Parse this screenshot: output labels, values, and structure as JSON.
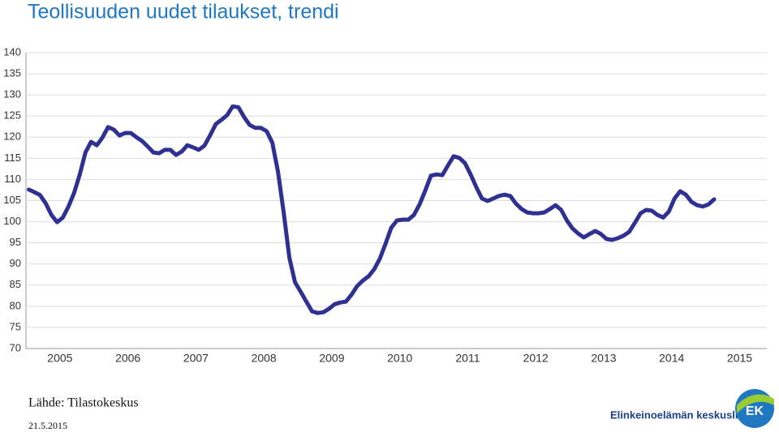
{
  "chart_data": {
    "type": "line",
    "title": "Teollisuuden uudet tilaukset, trendi",
    "x": [
      2005.042,
      2005.125,
      2005.208,
      2005.292,
      2005.375,
      2005.458,
      2005.542,
      2005.625,
      2005.708,
      2005.792,
      2005.875,
      2005.958,
      2006.042,
      2006.125,
      2006.208,
      2006.292,
      2006.375,
      2006.458,
      2006.542,
      2006.625,
      2006.708,
      2006.792,
      2006.875,
      2006.958,
      2007.042,
      2007.125,
      2007.208,
      2007.292,
      2007.375,
      2007.458,
      2007.542,
      2007.625,
      2007.708,
      2007.792,
      2007.875,
      2007.958,
      2008.042,
      2008.125,
      2008.208,
      2008.292,
      2008.375,
      2008.458,
      2008.542,
      2008.625,
      2008.708,
      2008.792,
      2008.875,
      2008.958,
      2009.042,
      2009.125,
      2009.208,
      2009.292,
      2009.375,
      2009.458,
      2009.542,
      2009.625,
      2009.708,
      2009.792,
      2009.875,
      2009.958,
      2010.042,
      2010.125,
      2010.208,
      2010.292,
      2010.375,
      2010.458,
      2010.542,
      2010.625,
      2010.708,
      2010.792,
      2010.875,
      2010.958,
      2011.042,
      2011.125,
      2011.208,
      2011.292,
      2011.375,
      2011.458,
      2011.542,
      2011.625,
      2011.708,
      2011.792,
      2011.875,
      2011.958,
      2012.042,
      2012.125,
      2012.208,
      2012.292,
      2012.375,
      2012.458,
      2012.542,
      2012.625,
      2012.708,
      2012.792,
      2012.875,
      2012.958,
      2013.042,
      2013.125,
      2013.208,
      2013.292,
      2013.375,
      2013.458,
      2013.542,
      2013.625,
      2013.708,
      2013.792,
      2013.875,
      2013.958,
      2014.042,
      2014.125,
      2014.208,
      2014.292,
      2014.375,
      2014.458,
      2014.542,
      2014.625,
      2014.708,
      2014.792,
      2014.875,
      2014.958,
      2015.042,
      2015.125
    ],
    "values": [
      107.6,
      107,
      106.3,
      104.3,
      101.6,
      99.9,
      101,
      103.6,
      106.8,
      111.2,
      116.4,
      118.9,
      118.1,
      119.9,
      122.4,
      121.8,
      120.4,
      121,
      121,
      120,
      119.1,
      117.8,
      116.4,
      116.2,
      117,
      117,
      115.8,
      116.6,
      118.1,
      117.6,
      117,
      118,
      120.4,
      123.1,
      124.1,
      125.2,
      127.3,
      127.1,
      124.8,
      122.9,
      122.2,
      122.2,
      121.4,
      118.7,
      111.8,
      102.2,
      91.5,
      85.7,
      83.4,
      81.1,
      78.8,
      78.4,
      78.6,
      79.4,
      80.5,
      80.9,
      81.1,
      82.8,
      84.8,
      86.1,
      87.1,
      88.8,
      91.3,
      94.9,
      98.6,
      100.3,
      100.5,
      100.5,
      101.6,
      104.1,
      107.4,
      110.9,
      111.2,
      111,
      113.3,
      115.5,
      115.1,
      113.9,
      111.2,
      108.2,
      105.5,
      104.9,
      105.5,
      106.1,
      106.4,
      106.1,
      104.3,
      103,
      102.2,
      102,
      102,
      102.2,
      103,
      103.9,
      102.8,
      100.3,
      98.4,
      97.2,
      96.3,
      97.1,
      97.8,
      97.1,
      95.9,
      95.7,
      96.1,
      96.7,
      97.6,
      99.7,
      102,
      102.8,
      102.6,
      101.6,
      101,
      102.4,
      105.5,
      107.2,
      106.4,
      104.7,
      103.9,
      103.6,
      104.1,
      105.3
    ],
    "color": "#2e3192",
    "xlim": [
      2005,
      2015.9
    ],
    "xticks": [
      {
        "value": 2005.5,
        "label": "2005"
      },
      {
        "value": 2006.5,
        "label": "2006"
      },
      {
        "value": 2007.5,
        "label": "2007"
      },
      {
        "value": 2008.5,
        "label": "2008"
      },
      {
        "value": 2009.5,
        "label": "2009"
      },
      {
        "value": 2010.5,
        "label": "2010"
      },
      {
        "value": 2011.5,
        "label": "2011"
      },
      {
        "value": 2012.5,
        "label": "2012"
      },
      {
        "value": 2013.5,
        "label": "2013"
      },
      {
        "value": 2014.5,
        "label": "2014"
      },
      {
        "value": 2015.5,
        "label": "2015"
      }
    ],
    "ylim": [
      70,
      140
    ],
    "yticks": [
      70,
      75,
      80,
      85,
      90,
      95,
      100,
      105,
      110,
      115,
      120,
      125,
      130,
      135,
      140
    ],
    "grid": true
  },
  "footer": {
    "source": "Lähde: Tilastokeskus",
    "date": "21.5.2015"
  },
  "logo": {
    "text": "Elinkeinoelämän keskusliitto",
    "mark": "EK"
  }
}
